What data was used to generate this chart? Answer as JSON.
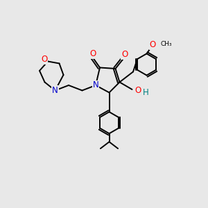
{
  "bg_color": "#e8e8e8",
  "atom_colors": {
    "O": "#ff0000",
    "N": "#0000cc",
    "C": "#000000",
    "OH": "#008080"
  },
  "bond_color": "#000000",
  "bond_width": 1.4,
  "figsize": [
    3.0,
    3.0
  ],
  "dpi": 100,
  "xlim": [
    0,
    10
  ],
  "ylim": [
    0,
    10
  ]
}
